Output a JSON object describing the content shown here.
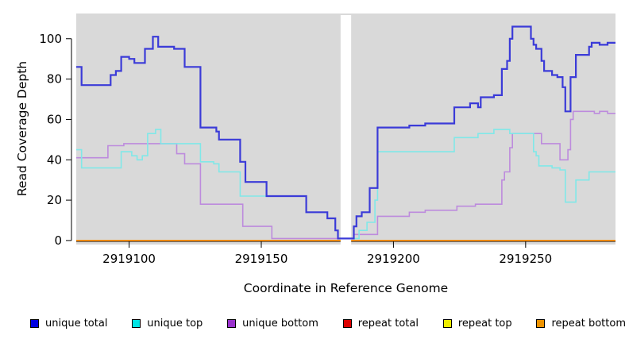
{
  "figure": {
    "background": "#ffffff",
    "plot_background": "#d9d9d9",
    "axis_color": "#000000"
  },
  "chart_data": {
    "type": "line",
    "step": "post",
    "title": "",
    "xlabel": "Coordinate in Reference Genome",
    "ylabel": "Read Coverage Depth",
    "xlim": [
      2919080,
      2919284
    ],
    "ylim": [
      -2,
      112.5
    ],
    "grid": false,
    "legend_position": "bottom",
    "plot_background": "#d9d9d9",
    "x_axis": {
      "ticks": [
        2919100,
        2919150,
        2919200,
        2919250
      ],
      "labels": [
        "2919100",
        "2919150",
        "2919200",
        "2919250"
      ]
    },
    "y_axis": {
      "ticks": [
        0,
        20,
        40,
        60,
        80,
        100
      ],
      "labels": [
        "0",
        "20",
        "40",
        "60",
        "80",
        "100"
      ]
    },
    "mask_band": {
      "x_start": 2919180,
      "x_end": 2919184,
      "color": "#ffffff"
    },
    "series": [
      {
        "name": "repeat total",
        "line_color": "#dd0000",
        "line_width": 1.5,
        "above_mask": false,
        "points": [
          [
            2919080,
            0
          ]
        ]
      },
      {
        "name": "repeat top",
        "line_color": "#ededed00",
        "line_width": 1.5,
        "above_mask": false,
        "points": [
          [
            2919080,
            0
          ]
        ]
      },
      {
        "name": "repeat bottom",
        "line_color": "#ff9703",
        "line_width": 1.8,
        "above_mask": false,
        "points": [
          [
            2919080,
            0
          ]
        ]
      },
      {
        "name": "unique bottom",
        "line_color": "#bd8bdd",
        "line_width": 1.6,
        "above_mask": false,
        "points": [
          [
            2919080,
            41
          ],
          [
            2919092,
            47
          ],
          [
            2919098,
            48
          ],
          [
            2919118,
            43
          ],
          [
            2919121,
            38
          ],
          [
            2919127,
            18
          ],
          [
            2919143,
            7
          ],
          [
            2919154,
            1
          ],
          [
            2919185,
            3
          ],
          [
            2919194,
            12
          ],
          [
            2919206,
            14
          ],
          [
            2919212,
            15
          ],
          [
            2919224,
            17
          ],
          [
            2919231,
            18
          ],
          [
            2919241,
            30
          ],
          [
            2919242,
            34
          ],
          [
            2919244,
            46
          ],
          [
            2919245,
            53
          ],
          [
            2919256,
            48
          ],
          [
            2919263,
            40
          ],
          [
            2919266,
            45
          ],
          [
            2919267,
            60
          ],
          [
            2919268,
            64
          ],
          [
            2919276,
            63
          ],
          [
            2919278,
            64
          ],
          [
            2919281,
            63
          ]
        ]
      },
      {
        "name": "unique top",
        "line_color": "#80e8e8",
        "line_width": 1.6,
        "above_mask": true,
        "points": [
          [
            2919080,
            45
          ],
          [
            2919082,
            36
          ],
          [
            2919097,
            44
          ],
          [
            2919101,
            42
          ],
          [
            2919103,
            40
          ],
          [
            2919105,
            42
          ],
          [
            2919107,
            53
          ],
          [
            2919110,
            55
          ],
          [
            2919112,
            48
          ],
          [
            2919127,
            39
          ],
          [
            2919132,
            38
          ],
          [
            2919134,
            34
          ],
          [
            2919142,
            22
          ],
          [
            2919167,
            14
          ],
          [
            2919175,
            11
          ],
          [
            2919178,
            5
          ],
          [
            2919179,
            1
          ],
          [
            2919187,
            5
          ],
          [
            2919190,
            9
          ],
          [
            2919193,
            20
          ],
          [
            2919194,
            44
          ],
          [
            2919223,
            51
          ],
          [
            2919232,
            53
          ],
          [
            2919238,
            55
          ],
          [
            2919244,
            53
          ],
          [
            2919253,
            44
          ],
          [
            2919254,
            42
          ],
          [
            2919255,
            37
          ],
          [
            2919260,
            36
          ],
          [
            2919263,
            35
          ],
          [
            2919265,
            19
          ],
          [
            2919269,
            30
          ],
          [
            2919274,
            34
          ]
        ]
      },
      {
        "name": "unique total",
        "line_color": "#3b3bd8",
        "line_width": 2.2,
        "above_mask": true,
        "points": [
          [
            2919080,
            86
          ],
          [
            2919082,
            77
          ],
          [
            2919093,
            82
          ],
          [
            2919095,
            84
          ],
          [
            2919097,
            91
          ],
          [
            2919100,
            90
          ],
          [
            2919102,
            88
          ],
          [
            2919106,
            95
          ],
          [
            2919109,
            101
          ],
          [
            2919111,
            96
          ],
          [
            2919117,
            95
          ],
          [
            2919121,
            86
          ],
          [
            2919127,
            56
          ],
          [
            2919133,
            54
          ],
          [
            2919134,
            50
          ],
          [
            2919142,
            39
          ],
          [
            2919144,
            29
          ],
          [
            2919152,
            22
          ],
          [
            2919167,
            14
          ],
          [
            2919175,
            11
          ],
          [
            2919178,
            5
          ],
          [
            2919179,
            1
          ],
          [
            2919185,
            7
          ],
          [
            2919186,
            12
          ],
          [
            2919188,
            14
          ],
          [
            2919191,
            26
          ],
          [
            2919194,
            56
          ],
          [
            2919206,
            57
          ],
          [
            2919212,
            58
          ],
          [
            2919223,
            66
          ],
          [
            2919229,
            68
          ],
          [
            2919232,
            66
          ],
          [
            2919233,
            71
          ],
          [
            2919238,
            72
          ],
          [
            2919241,
            85
          ],
          [
            2919243,
            89
          ],
          [
            2919244,
            100
          ],
          [
            2919245,
            106
          ],
          [
            2919252,
            100
          ],
          [
            2919253,
            97
          ],
          [
            2919254,
            95
          ],
          [
            2919256,
            89
          ],
          [
            2919257,
            84
          ],
          [
            2919260,
            82
          ],
          [
            2919262,
            81
          ],
          [
            2919264,
            76
          ],
          [
            2919265,
            64
          ],
          [
            2919267,
            81
          ],
          [
            2919269,
            92
          ],
          [
            2919274,
            96
          ],
          [
            2919275,
            98
          ],
          [
            2919278,
            97
          ],
          [
            2919281,
            98
          ]
        ]
      }
    ]
  },
  "legend": {
    "items": [
      {
        "label": "unique total",
        "color": "#0000e0"
      },
      {
        "label": "unique top",
        "color": "#00e5e5"
      },
      {
        "label": "unique bottom",
        "color": "#9a32cd"
      },
      {
        "label": "repeat total",
        "color": "#dd0000"
      },
      {
        "label": "repeat top",
        "color": "#eded00"
      },
      {
        "label": "repeat bottom",
        "color": "#ee9300"
      }
    ]
  }
}
